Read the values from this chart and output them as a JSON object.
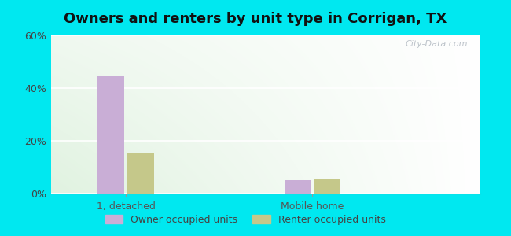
{
  "title": "Owners and renters by unit type in Corrigan, TX",
  "categories": [
    "1, detached",
    "Mobile home"
  ],
  "owner_values": [
    44.5,
    5.0
  ],
  "renter_values": [
    15.5,
    5.5
  ],
  "owner_color": "#c9aed6",
  "renter_color": "#c5c88a",
  "ylim": [
    0,
    60
  ],
  "yticks": [
    0,
    20,
    40,
    60
  ],
  "ytick_labels": [
    "0%",
    "20%",
    "40%",
    "60%"
  ],
  "bar_width": 0.28,
  "background_outer": "#00e8f0",
  "watermark": "City-Data.com",
  "legend_owner": "Owner occupied units",
  "legend_renter": "Renter occupied units",
  "title_fontsize": 13,
  "tick_fontsize": 9,
  "legend_fontsize": 9,
  "group_positions": [
    1.0,
    3.0
  ],
  "xlim": [
    0.2,
    4.8
  ]
}
